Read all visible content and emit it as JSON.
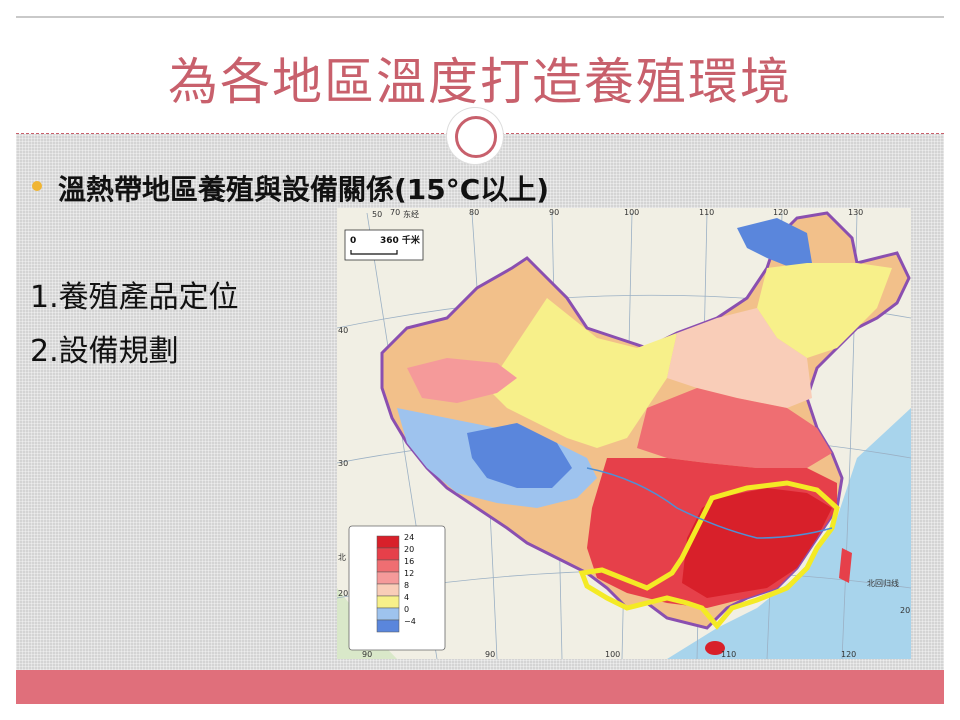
{
  "slide": {
    "title": "為各地區溫度打造養殖環境",
    "heading": "溫熱帶地區養殖與設備關係(15°C以上)",
    "list": [
      "1.養殖產品定位",
      "2.設備規劃"
    ]
  },
  "map": {
    "scale_label": "360 千米",
    "scale_zero": "0",
    "top_lon_labels": [
      "50",
      "70",
      "东经",
      "80",
      "90",
      "100",
      "110",
      "120",
      "130"
    ],
    "bottom_lon_labels": [
      "90",
      "90",
      "100",
      "110",
      "120"
    ],
    "lat_labels": [
      "40",
      "30",
      "20",
      "20"
    ],
    "tropic_label": "北回归线",
    "tropic_label_left": "北",
    "legend_values": [
      "24",
      "20",
      "16",
      "12",
      "8",
      "4",
      "0",
      "−4"
    ],
    "legend_colors": [
      "#d8202a",
      "#e6404a",
      "#ef6e72",
      "#f59a9a",
      "#f9cdb8",
      "#f7f08a",
      "#9ec3ee",
      "#5a86dc"
    ],
    "colors": {
      "title": "#c8606c",
      "accent_bar": "#e06f7b",
      "bullet": "#f0b532"
    }
  }
}
